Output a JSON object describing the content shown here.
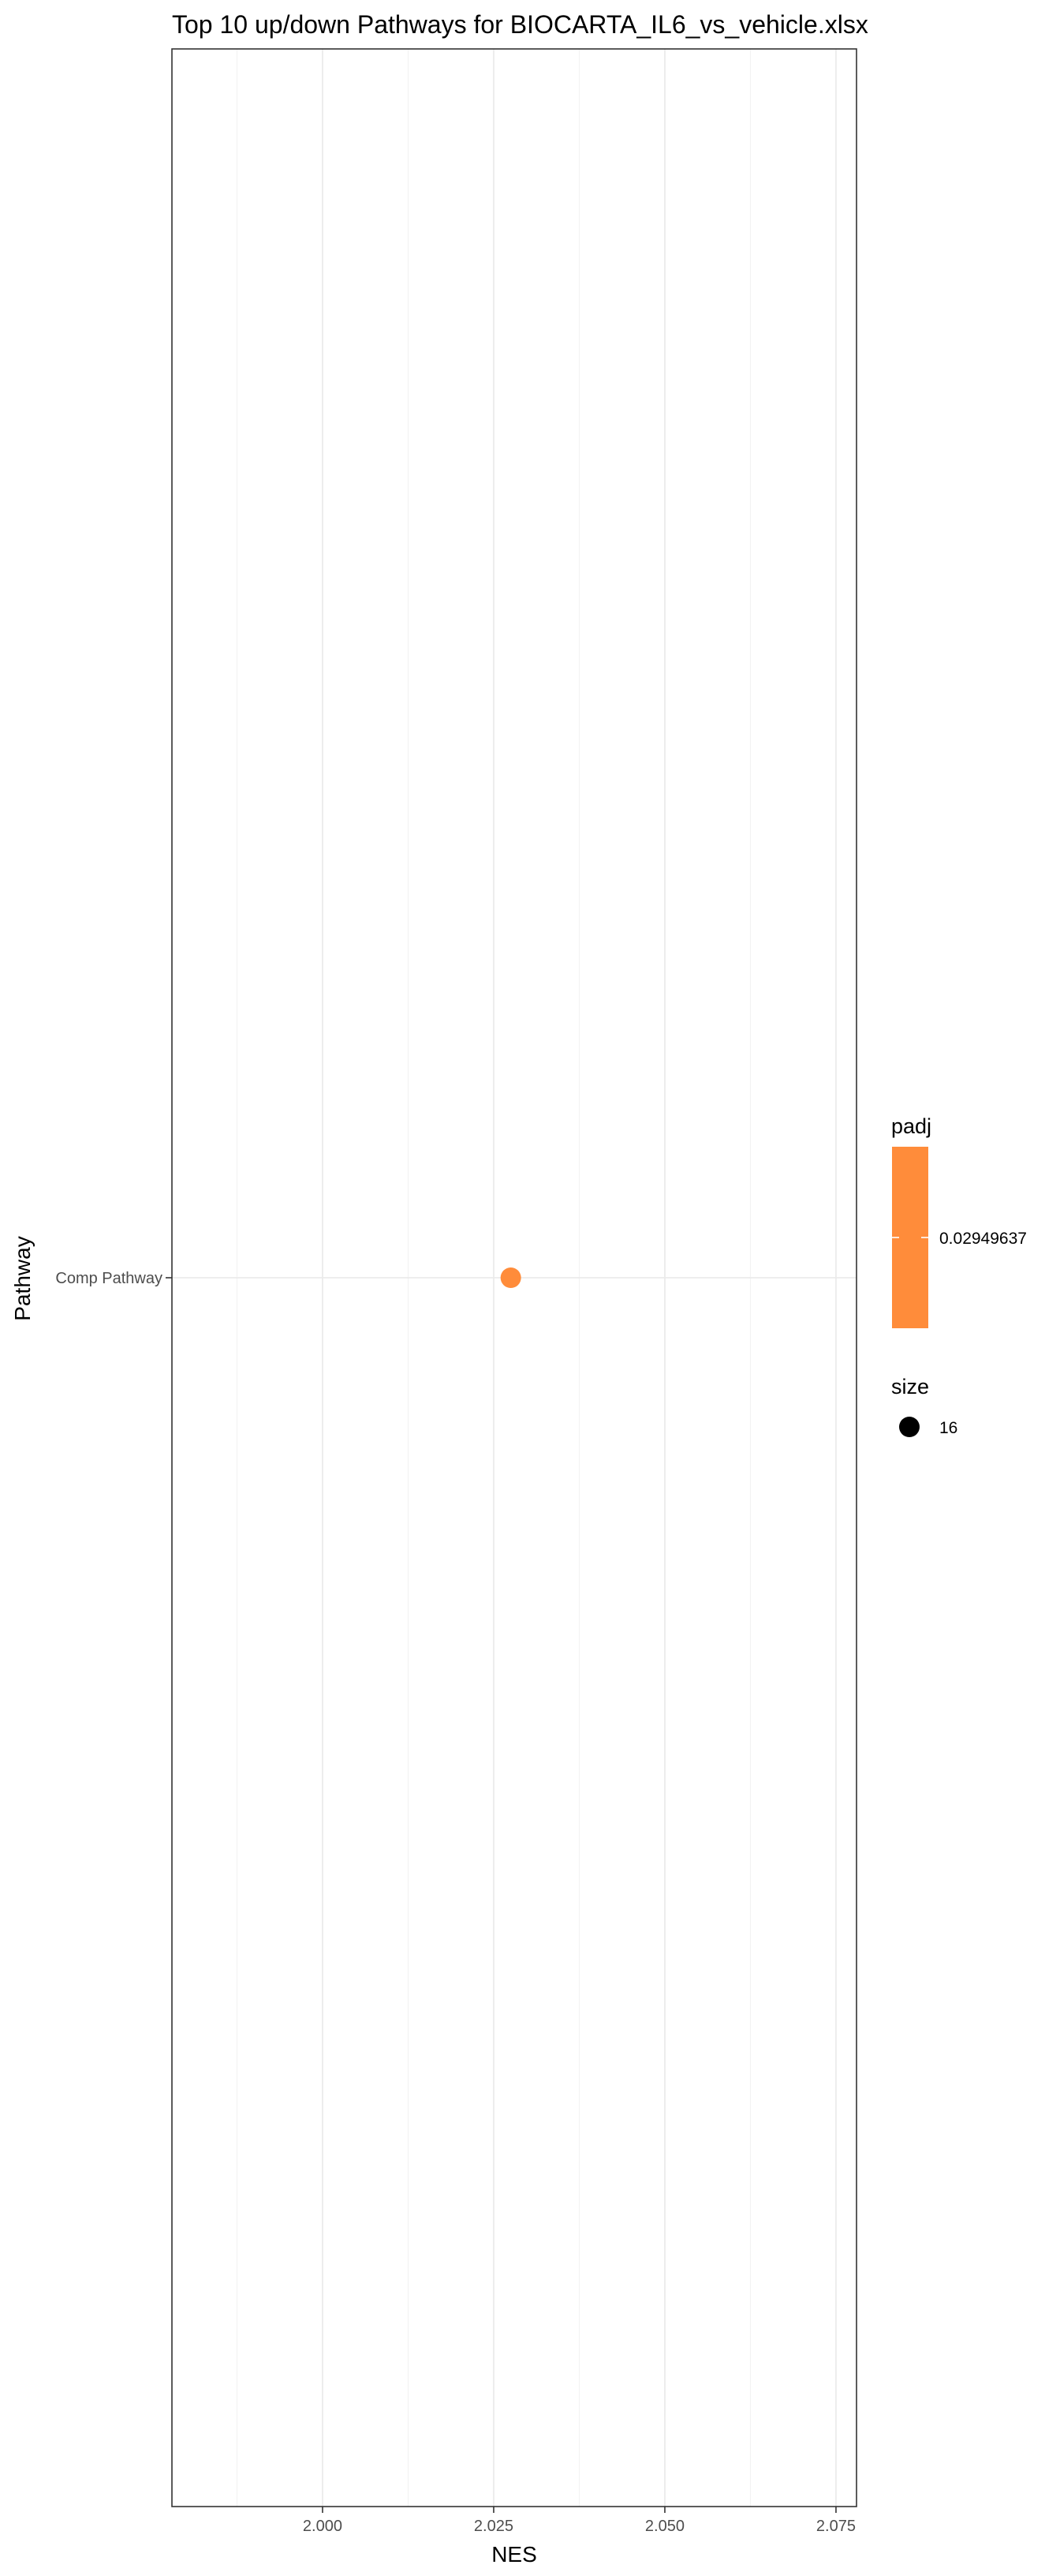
{
  "chart_data": {
    "type": "scatter",
    "title": "Top 10 up/down Pathways for  BIOCARTA_IL6_vs_vehicle.xlsx",
    "xlabel": "NES",
    "ylabel": "Pathway",
    "xlim": [
      1.978,
      2.078
    ],
    "x_ticks": [
      2.0,
      2.025,
      2.05,
      2.075
    ],
    "x_tick_labels": [
      "2.000",
      "2.025",
      "2.050",
      "2.075"
    ],
    "categories": [
      "Comp Pathway"
    ],
    "points": [
      {
        "pathway": "Comp Pathway",
        "NES": 2.0275,
        "padj": 0.02949637,
        "size": 16,
        "color": "#ff8c3a"
      }
    ],
    "grid": true,
    "legend_position": "right",
    "legend": {
      "color": {
        "title": "padj",
        "label": "0.02949637",
        "fill": "#ff8c3a"
      },
      "size": {
        "title": "size",
        "label": "16"
      }
    }
  }
}
